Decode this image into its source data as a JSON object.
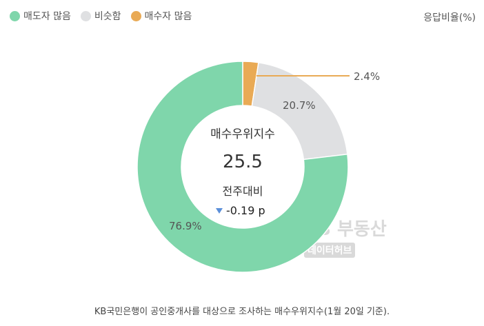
{
  "legend": [
    {
      "label": "매도자 많음",
      "color": "#7fd6ab"
    },
    {
      "label": "비슷함",
      "color": "#dfe0e2"
    },
    {
      "label": "매수자 많음",
      "color": "#e9aa55"
    }
  ],
  "unit_label": "응답비율(%)",
  "chart_data": {
    "type": "pie",
    "donut": true,
    "start": "top",
    "direction": "clockwise",
    "slices": [
      {
        "name": "매수자 많음",
        "value": 2.4,
        "label": "2.4%",
        "color": "#e9aa55"
      },
      {
        "name": "비슷함",
        "value": 20.7,
        "label": "20.7%",
        "color": "#dfe0e2"
      },
      {
        "name": "매도자 많음",
        "value": 76.9,
        "label": "76.9%",
        "color": "#7fd6ab"
      }
    ],
    "center": {
      "title": "매수우위지수",
      "value": "25.5",
      "change_label": "전주대비",
      "change_value": "-0.19 p",
      "change_direction": "down",
      "change_color": "#5b8fd9"
    }
  },
  "watermark": {
    "line1": "KB 부동산",
    "line2": "데이터허브"
  },
  "caption": "KB국민은행이 공인중개사를 대상으로 조사하는 매수우위지수(1월 20일 기준)."
}
